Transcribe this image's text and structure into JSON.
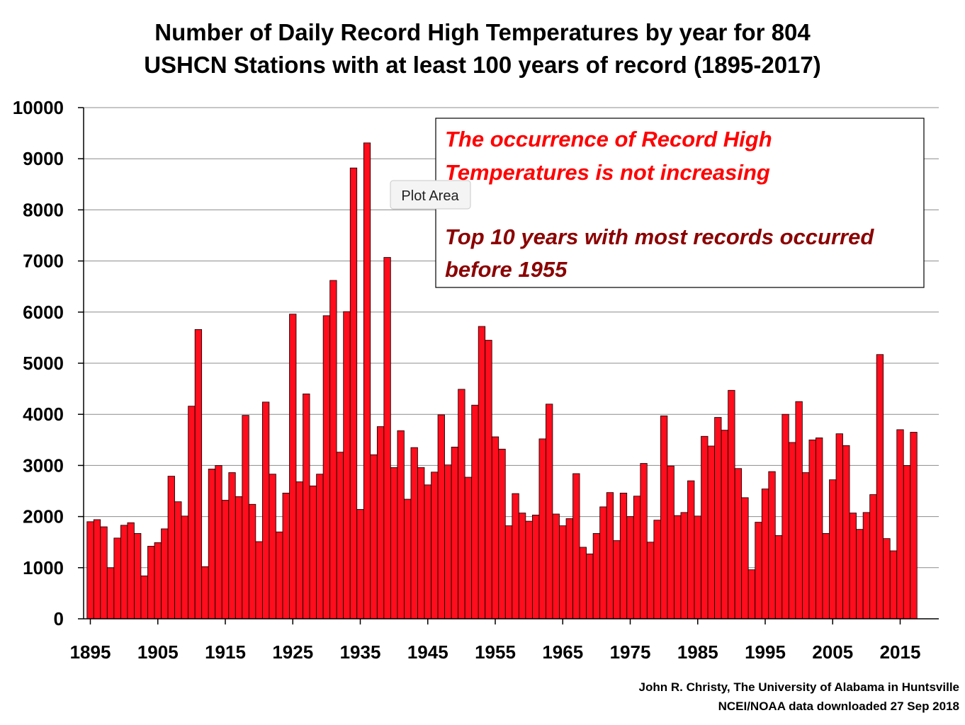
{
  "chart_data": {
    "type": "bar",
    "title": [
      "Number of Daily Record High Temperatures by year for 804",
      "USHCN Stations with at least 100 years of record (1895-2017)"
    ],
    "xlabel": "",
    "ylabel": "",
    "ylim": [
      0,
      10000
    ],
    "yticks": [
      0,
      1000,
      2000,
      3000,
      4000,
      5000,
      6000,
      7000,
      8000,
      9000,
      10000
    ],
    "xtick_labels": [
      "1895",
      "1905",
      "1915",
      "1925",
      "1935",
      "1945",
      "1955",
      "1965",
      "1975",
      "1985",
      "1995",
      "2005",
      "2015"
    ],
    "grid": "horizontal",
    "bar_color": "#ff0d1c",
    "series": [
      {
        "x": [
          1895,
          1896,
          1897,
          1898,
          1899,
          1900,
          1901,
          1902,
          1903,
          1904,
          1905,
          1906,
          1907,
          1908,
          1909,
          1910,
          1911,
          1912,
          1913,
          1914,
          1915,
          1916,
          1917,
          1918,
          1919,
          1920,
          1921,
          1922,
          1923,
          1924,
          1925,
          1926,
          1927,
          1928,
          1929,
          1930,
          1931,
          1932,
          1933,
          1934,
          1935,
          1936,
          1937,
          1938,
          1939,
          1940,
          1941,
          1942,
          1943,
          1944,
          1945,
          1946,
          1947,
          1948,
          1949,
          1950,
          1951,
          1952,
          1953,
          1954,
          1955,
          1956,
          1957,
          1958,
          1959,
          1960,
          1961,
          1962,
          1963,
          1964,
          1965,
          1966,
          1967,
          1968,
          1969,
          1970,
          1971,
          1972,
          1973,
          1974,
          1975,
          1976,
          1977,
          1978,
          1979,
          1980,
          1981,
          1982,
          1983,
          1984,
          1985,
          1986,
          1987,
          1988,
          1989,
          1990,
          1991,
          1992,
          1993,
          1994,
          1995,
          1996,
          1997,
          1998,
          1999,
          2000,
          2001,
          2002,
          2003,
          2004,
          2005,
          2006,
          2007,
          2008,
          2009,
          2010,
          2011,
          2012,
          2013,
          2014,
          2015,
          2016,
          2017
        ],
        "values": [
          1900,
          1940,
          1800,
          1000,
          1580,
          1830,
          1880,
          1670,
          840,
          1420,
          1490,
          1760,
          2790,
          2290,
          2010,
          4160,
          5660,
          1020,
          2930,
          3000,
          2320,
          2860,
          2390,
          3980,
          2240,
          1510,
          4240,
          2830,
          1700,
          2460,
          5960,
          2680,
          4400,
          2600,
          2830,
          5930,
          6620,
          3260,
          6010,
          8820,
          2140,
          9310,
          3210,
          3760,
          7070,
          2960,
          3680,
          2340,
          3350,
          2960,
          2620,
          2870,
          3990,
          3010,
          3360,
          4490,
          2770,
          4180,
          5720,
          5450,
          3560,
          3320,
          1820,
          2450,
          2070,
          1910,
          2030,
          3520,
          4200,
          2050,
          1820,
          1960,
          2840,
          1400,
          1270,
          1670,
          2190,
          2470,
          1530,
          2460,
          2000,
          2400,
          3040,
          1500,
          1930,
          3970,
          2990,
          2020,
          2080,
          2700,
          2010,
          3570,
          3380,
          3940,
          3690,
          4470,
          2940,
          2370,
          960,
          1890,
          2540,
          2880,
          1630,
          4000,
          3450,
          4250,
          2860,
          3500,
          3540,
          1670,
          2720,
          3620,
          3390,
          2070,
          1750,
          2080,
          2430,
          5170,
          1570,
          1330,
          3700,
          3000,
          3650
        ]
      }
    ]
  },
  "annotations": {
    "note_red": [
      "The occurrence of Record High",
      "Temperatures is not increasing"
    ],
    "note_dark": [
      "Top 10 years with most records occurred",
      "before 1955"
    ]
  },
  "tooltip": {
    "label": "Plot Area"
  },
  "credits": [
    "John R. Christy, The University of Alabama in Huntsville",
    "NCEI/NOAA data downloaded 27 Sep 2018"
  ]
}
